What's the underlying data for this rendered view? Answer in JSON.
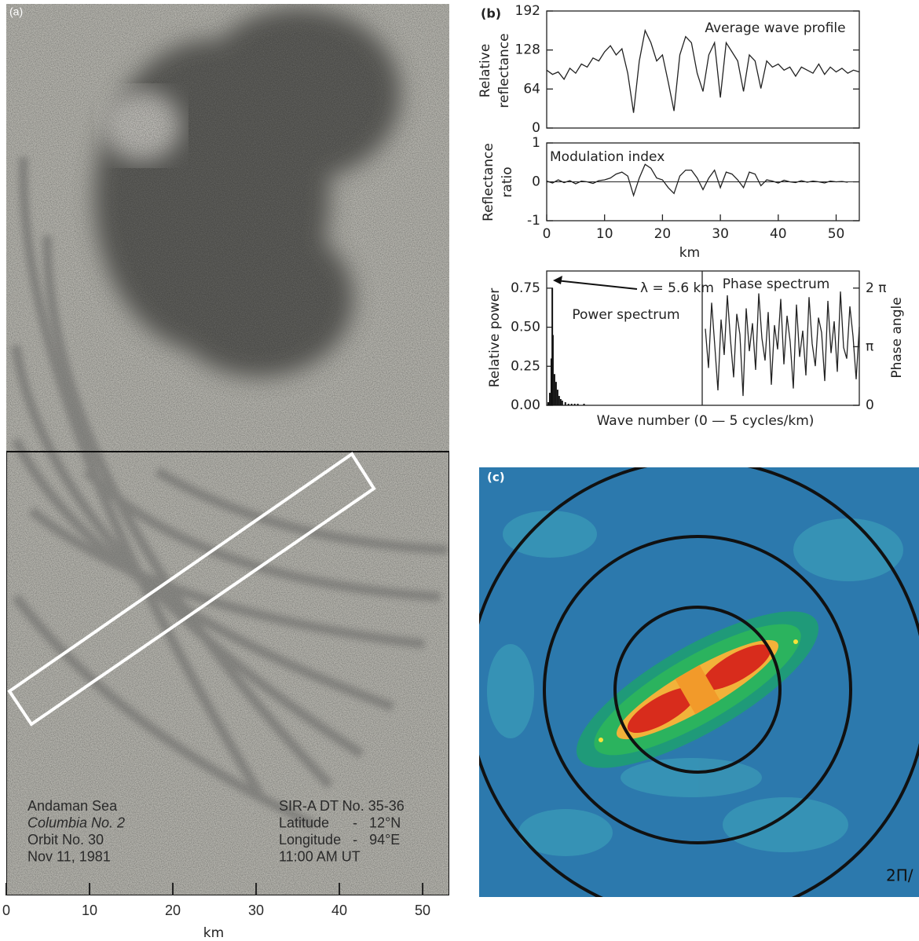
{
  "panel_a": {
    "label": "(a)",
    "caption_left": [
      "Andaman Sea",
      "Columbia No. 2",
      "Orbit No. 30",
      "Nov 11, 1981"
    ],
    "caption_right": [
      "SIR-A DT No. 35-36",
      "Latitude      -   12°N",
      "Longitude   -   94°E",
      "11:00 AM UT"
    ],
    "xlim": [
      0,
      53.2
    ],
    "xticks": [
      0,
      10,
      20,
      30,
      40,
      50
    ],
    "xlabel": "km"
  },
  "panel_c": {
    "label": "(c)",
    "corner_text": "2Π/"
  },
  "chart_data": [
    {
      "type": "line",
      "panel_label": "(b)",
      "annotation": "Average wave profile",
      "ylabel": [
        "Relative",
        "reflectance"
      ],
      "x": [
        0,
        1,
        2,
        3,
        4,
        5,
        6,
        7,
        8,
        9,
        10,
        11,
        12,
        13,
        14,
        15,
        16,
        17,
        18,
        19,
        20,
        21,
        22,
        23,
        24,
        25,
        26,
        27,
        28,
        29,
        30,
        31,
        32,
        33,
        34,
        35,
        36,
        37,
        38,
        39,
        40,
        41,
        42,
        43,
        44,
        45,
        46,
        47,
        48,
        49,
        50,
        51,
        52,
        53,
        54
      ],
      "values": [
        95,
        88,
        92,
        80,
        98,
        90,
        105,
        100,
        115,
        110,
        125,
        135,
        120,
        130,
        90,
        25,
        110,
        160,
        140,
        110,
        120,
        75,
        28,
        120,
        150,
        140,
        90,
        60,
        120,
        140,
        50,
        140,
        125,
        110,
        60,
        120,
        110,
        65,
        110,
        100,
        105,
        95,
        100,
        85,
        100,
        95,
        90,
        105,
        88,
        100,
        92,
        98,
        90,
        95,
        92
      ],
      "color": "#222222",
      "xlim": [
        0,
        54
      ],
      "ylim": [
        0,
        192
      ],
      "yticks": [
        0,
        64,
        128,
        192
      ]
    },
    {
      "type": "line",
      "annotation": "Modulation index",
      "ylabel": [
        "Reflectance",
        "ratio"
      ],
      "xlabel": "km",
      "x": [
        0,
        1,
        2,
        3,
        4,
        5,
        6,
        7,
        8,
        9,
        10,
        11,
        12,
        13,
        14,
        15,
        16,
        17,
        18,
        19,
        20,
        21,
        22,
        23,
        24,
        25,
        26,
        27,
        28,
        29,
        30,
        31,
        32,
        33,
        34,
        35,
        36,
        37,
        38,
        39,
        40,
        41,
        42,
        43,
        44,
        45,
        46,
        47,
        48,
        49,
        50,
        51,
        52
      ],
      "values": [
        0.02,
        -0.03,
        0.05,
        -0.02,
        0.03,
        -0.05,
        0.02,
        0,
        -0.04,
        0.03,
        0.05,
        0.1,
        0.2,
        0.25,
        0.15,
        -0.35,
        0.1,
        0.45,
        0.35,
        0.1,
        0.05,
        -0.15,
        -0.3,
        0.15,
        0.3,
        0.3,
        0.1,
        -0.2,
        0.1,
        0.3,
        -0.15,
        0.25,
        0.2,
        0.05,
        -0.15,
        0.25,
        0.2,
        -0.1,
        0.05,
        0.02,
        -0.03,
        0.04,
        0,
        -0.02,
        0.03,
        -0.01,
        0.02,
        0,
        -0.03,
        0.02,
        0,
        0.01,
        -0.01
      ],
      "color": "#222222",
      "xlim": [
        0,
        54
      ],
      "ylim": [
        -1,
        1
      ],
      "yticks": [
        -1,
        0,
        1
      ],
      "xticks": [
        0,
        10,
        20,
        30,
        40,
        50
      ]
    },
    {
      "type": "bar",
      "annotations": [
        "λ = 5.6 km",
        "Power spectrum"
      ],
      "ylabel": "Relative power",
      "xlabel": "Wave number (0 — 5 cycles/km)",
      "x": [
        0.05,
        0.1,
        0.15,
        0.18,
        0.2,
        0.25,
        0.3,
        0.35,
        0.4,
        0.45,
        0.5,
        0.6,
        0.7,
        0.8,
        0.9,
        1.0,
        1.2
      ],
      "values": [
        0.02,
        0.08,
        0.3,
        0.75,
        0.45,
        0.2,
        0.15,
        0.1,
        0.06,
        0.04,
        0.03,
        0.02,
        0.01,
        0.01,
        0.01,
        0.01,
        0.01
      ],
      "color": "#111111",
      "xlim": [
        0,
        5
      ],
      "ylim": [
        0,
        0.86
      ],
      "yticks": [
        {
          "value": 0,
          "label": "0.00"
        },
        {
          "value": 0.25,
          "label": "0.25"
        },
        {
          "value": 0.5,
          "label": "0.50"
        },
        {
          "value": 0.75,
          "label": "0.75"
        }
      ]
    },
    {
      "type": "line",
      "annotation": "Phase spectrum",
      "ylabel": "Phase angle",
      "x": [
        0.1,
        0.2,
        0.3,
        0.4,
        0.5,
        0.6,
        0.7,
        0.8,
        0.9,
        1.0,
        1.1,
        1.2,
        1.3,
        1.4,
        1.5,
        1.6,
        1.7,
        1.8,
        1.9,
        2.0,
        2.1,
        2.2,
        2.3,
        2.4,
        2.5,
        2.6,
        2.7,
        2.8,
        2.9,
        3.0,
        3.1,
        3.2,
        3.3,
        3.4,
        3.5,
        3.6,
        3.7,
        3.8,
        3.9,
        4.0,
        4.1,
        4.2,
        4.3,
        4.4,
        4.5,
        4.6,
        4.7,
        4.8,
        4.9,
        5.0
      ],
      "series": [
        {
          "axis": "y2",
          "color": "#222222",
          "values": [
            4.1,
            2.0,
            5.5,
            3.2,
            0.8,
            4.6,
            2.7,
            5.9,
            3.5,
            1.5,
            4.9,
            3.8,
            0.5,
            5.2,
            2.9,
            4.4,
            1.9,
            6.0,
            3.6,
            2.4,
            5.0,
            1.1,
            4.3,
            3.0,
            5.7,
            2.2,
            4.8,
            3.4,
            0.9,
            5.4,
            2.6,
            4.0,
            1.6,
            5.8,
            3.3,
            2.1,
            4.7,
            3.9,
            1.3,
            5.6,
            2.8,
            4.5,
            1.8,
            6.1,
            3.1,
            2.5,
            5.3,
            3.7,
            1.4,
            4.2
          ]
        }
      ],
      "xlim": [
        0,
        5
      ],
      "y2lim": [
        0,
        7.2
      ],
      "y2ticks": [
        0,
        {
          "value": 3.14159,
          "label": "π"
        },
        {
          "value": 6.28318,
          "label": "2 π"
        }
      ]
    }
  ]
}
